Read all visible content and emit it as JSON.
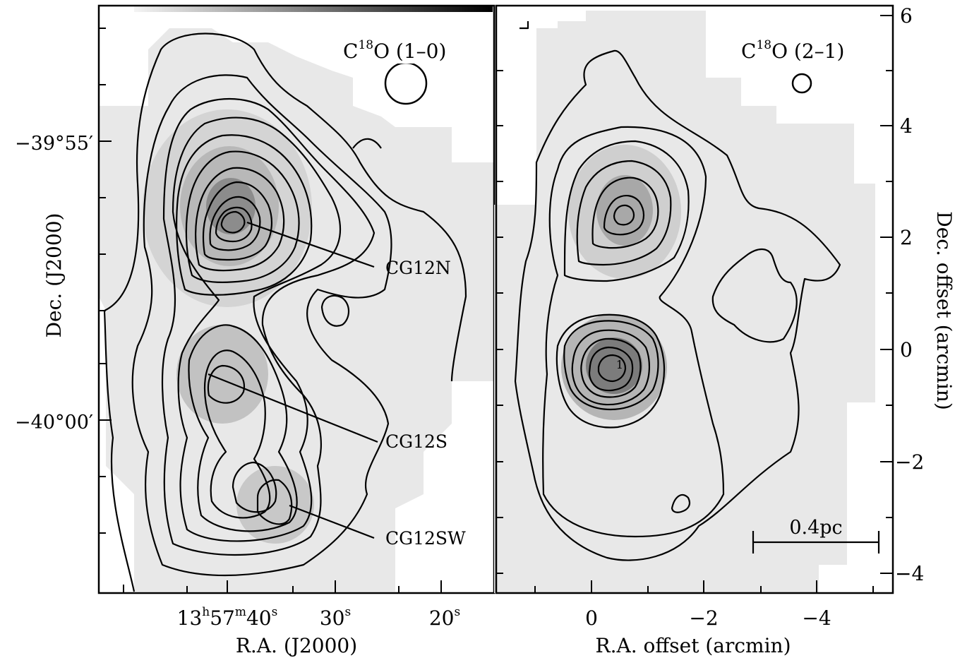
{
  "left_panel": {
    "title": "C18O (1–0)",
    "title_main": "C",
    "title_sup": "18",
    "title_rest": "O (1–0)",
    "ra_ticks": [
      {
        "h": "13",
        "hs": "h",
        "m": "57",
        "ms": "m",
        "s": "40",
        "ss": "s"
      },
      {
        "s": "30",
        "ss": "s"
      },
      {
        "s": "20",
        "ss": "s"
      }
    ],
    "dec_ticks": [
      "−39°55′",
      "−40°00′"
    ],
    "xlabel": "R.A. (J2000)",
    "ylabel": "Dec. (J2000)",
    "sources": [
      "CG12N",
      "CG12S",
      "CG12SW"
    ]
  },
  "right_panel": {
    "title_main": "C",
    "title_sup": "18",
    "title_rest": "O (2–1)",
    "x_ticks": [
      "0",
      "−2",
      "−4"
    ],
    "y_ticks": [
      "6",
      "4",
      "2",
      "0",
      "−2",
      "−4"
    ],
    "xlabel": "R.A. offset (arcmin)",
    "ylabel": "Dec. offset (arcmin)",
    "scalebar": "0.4pc",
    "peak_marker": "1"
  },
  "colors": {
    "background_gray": "#e6e6e6",
    "ink": "#000000"
  }
}
